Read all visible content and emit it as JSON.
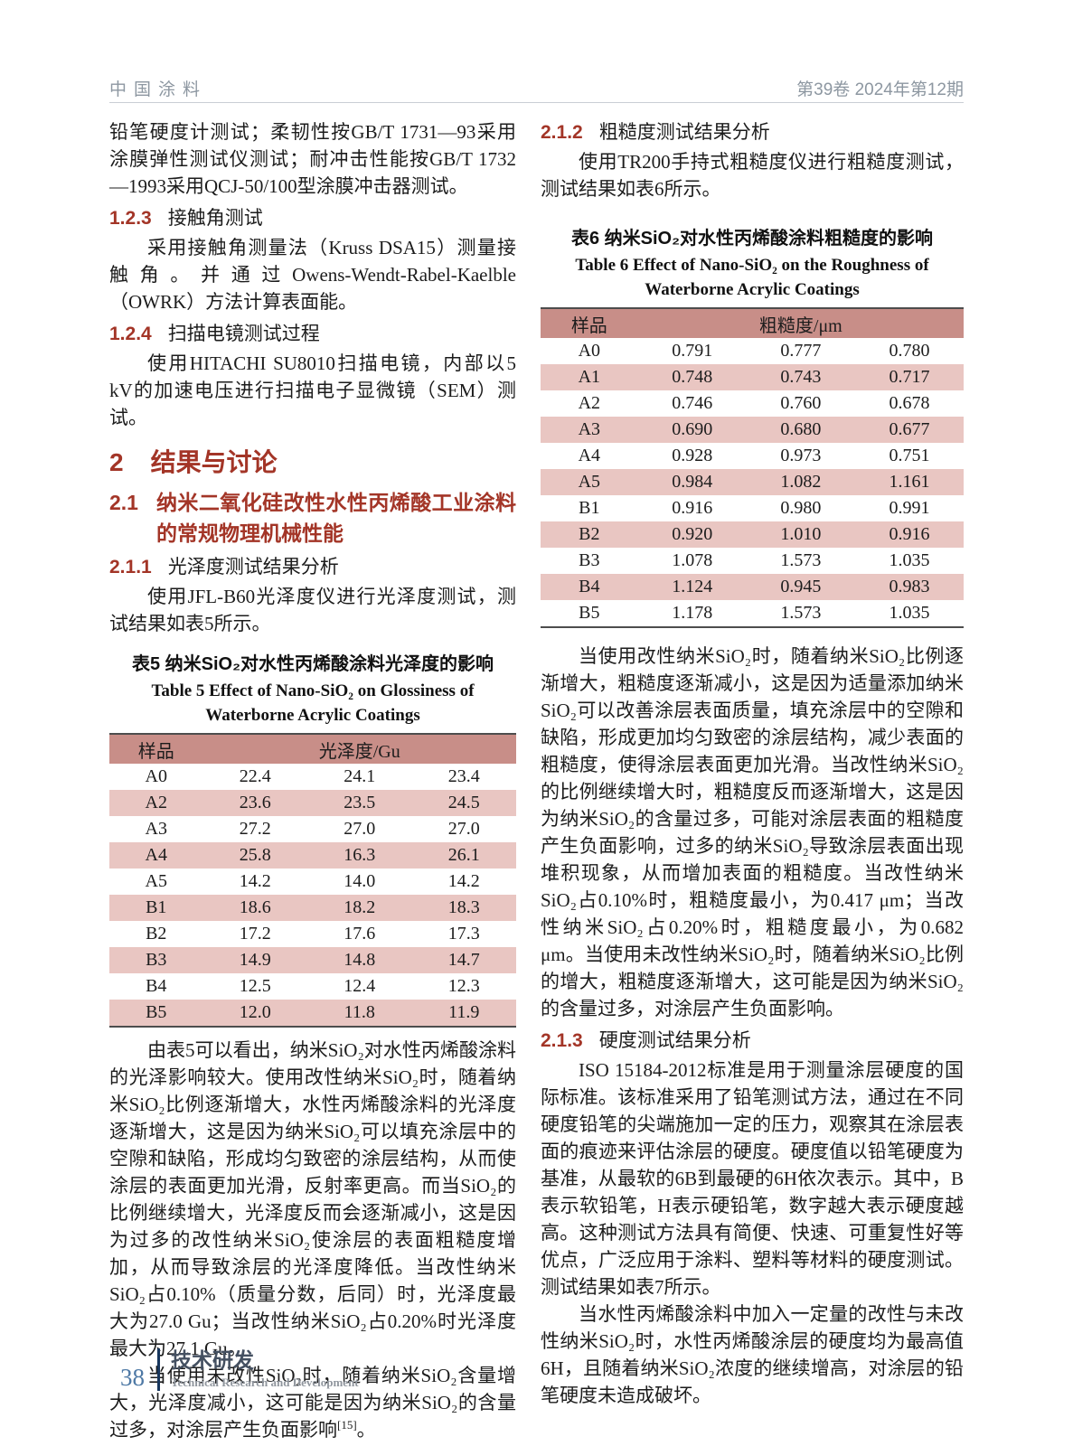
{
  "header": {
    "journal_cn": "中国涂料",
    "issue_info": "第39卷  2024年第12期"
  },
  "left_column": {
    "para_continuation": "铅笔硬度计测试；柔韧性按GB/T 1731—93采用涂膜弹性测试仪测试；耐冲击性能按GB/T 1732—1993采用QCJ-50/100型涂膜冲击器测试。",
    "h123": {
      "num": "1.2.3",
      "title": "接触角测试"
    },
    "para_contact_angle": "采用接触角测量法（Kruss DSA15）测量接触角。并通过Owens-Wendt-Rabel-Kaelble（OWRK）方法计算表面能。",
    "h124": {
      "num": "1.2.4",
      "title": "扫描电镜测试过程"
    },
    "para_sem": "使用HITACHI SU8010扫描电镜，内部以5 kV的加速电压进行扫描电子显微镜（SEM）测试。",
    "h2": {
      "num": "2",
      "title": "结果与讨论"
    },
    "h21": {
      "num": "2.1",
      "title": "纳米二氧化硅改性水性丙烯酸工业涂料的常规物理机械性能"
    },
    "h211": {
      "num": "2.1.1",
      "title": "光泽度测试结果分析"
    },
    "para_gloss_intro": "使用JFL-B60光泽度仪进行光泽度测试，测试结果如表5所示。",
    "para_gloss_discussion": "由表5可以看出，纳米SiO₂对水性丙烯酸涂料的光泽影响较大。使用改性纳米SiO₂时，随着纳米SiO₂比例逐渐增大，水性丙烯酸涂料的光泽度逐渐增大，这是因为纳米SiO₂可以填充涂层中的空隙和缺陷，形成均匀致密的涂层结构，从而使涂层的表面更加光滑，反射率更高。而当SiO₂的比例继续增大，光泽度反而会逐渐减小，这是因为过多的改性纳米SiO₂使涂层的表面粗糙度增加，从而导致涂层的光泽度降低。当改性纳米SiO₂占0.10%（质量分数，后同）时，光泽度最大为27.0 Gu；当改性纳米SiO₂占0.20%时光泽度最大为27.1 Gu。",
    "para_unmodified_text": "当使用未改性SiO₂时，随着纳米SiO₂含量增大，光泽度减小，这可能是因为纳米SiO₂的含量过多，对涂层产生负面影响",
    "para_unmodified_ref": "[15]",
    "para_unmodified_end": "。"
  },
  "right_column": {
    "h212": {
      "num": "2.1.2",
      "title": "粗糙度测试结果分析"
    },
    "para_rough_intro": "使用TR200手持式粗糙度仪进行粗糙度测试，测试结果如表6所示。",
    "para_rough_discussion": "当使用改性纳米SiO₂时，随着纳米SiO₂比例逐渐增大，粗糙度逐渐减小，这是因为适量添加纳米SiO₂可以改善涂层表面质量，填充涂层中的空隙和缺陷，形成更加均匀致密的涂层结构，减少表面的粗糙度，使得涂层表面更加光滑。当改性纳米SiO₂的比例继续增大时，粗糙度反而逐渐增大，这是因为纳米SiO₂的含量过多，可能对涂层表面的粗糙度产生负面影响，过多的纳米SiO₂导致涂层表面出现堆积现象，从而增加表面的粗糙度。当改性纳米SiO₂占0.10%时，粗糙度最小，为0.417 μm；当改性纳米SiO₂占0.20%时，粗糙度最小，为0.682 μm。当使用未改性纳米SiO₂时，随着纳米SiO₂比例的增大，粗糙度逐渐增大，这可能是因为纳米SiO₂的含量过多，对涂层产生负面影响。",
    "h213": {
      "num": "2.1.3",
      "title": "硬度测试结果分析"
    },
    "para_iso": "ISO 15184-2012标准是用于测量涂层硬度的国际标准。该标准采用了铅笔测试方法，通过在不同硬度铅笔的尖端施加一定的压力，观察其在涂层表面的痕迹来评估涂层的硬度。硬度值以铅笔硬度为基准，从最软的6B到最硬的6H依次表示。其中，B表示软铅笔，H表示硬铅笔，数字越大表示硬度越高。这种测试方法具有简便、快速、可重复性好等优点，广泛应用于涂料、塑料等材料的硬度测试。测试结果如表7所示。",
    "para_hardness": "当水性丙烯酸涂料中加入一定量的改性与未改性纳米SiO₂时，水性丙烯酸涂层的硬度均为最高值6H，且随着纳米SiO₂浓度的继续增高，对涂层的铅笔硬度未造成破坏。"
  },
  "table5": {
    "caption_cn": "表5  纳米SiO₂对水性丙烯酸涂料光泽度的影响",
    "caption_en": "Table 5  Effect of Nano-SiO₂ on Glossiness of Waterborne Acrylic Coatings",
    "header_sample": "样品",
    "header_value": "光泽度/Gu",
    "rows": [
      [
        "A0",
        "22.4",
        "24.1",
        "23.4"
      ],
      [
        "A2",
        "23.6",
        "23.5",
        "24.5"
      ],
      [
        "A3",
        "27.2",
        "27.0",
        "27.0"
      ],
      [
        "A4",
        "25.8",
        "16.3",
        "26.1"
      ],
      [
        "A5",
        "14.2",
        "14.0",
        "14.2"
      ],
      [
        "B1",
        "18.6",
        "18.2",
        "18.3"
      ],
      [
        "B2",
        "17.2",
        "17.6",
        "17.3"
      ],
      [
        "B3",
        "14.9",
        "14.8",
        "14.7"
      ],
      [
        "B4",
        "12.5",
        "12.4",
        "12.3"
      ],
      [
        "B5",
        "12.0",
        "11.8",
        "11.9"
      ]
    ]
  },
  "table6": {
    "caption_cn": "表6  纳米SiO₂对水性丙烯酸涂料粗糙度的影响",
    "caption_en": "Table 6  Effect of Nano-SiO₂ on the Roughness of Waterborne Acrylic Coatings",
    "header_sample": "样品",
    "header_value": "粗糙度/μm",
    "rows": [
      [
        "A0",
        "0.791",
        "0.777",
        "0.780"
      ],
      [
        "A1",
        "0.748",
        "0.743",
        "0.717"
      ],
      [
        "A2",
        "0.746",
        "0.760",
        "0.678"
      ],
      [
        "A3",
        "0.690",
        "0.680",
        "0.677"
      ],
      [
        "A4",
        "0.928",
        "0.973",
        "0.751"
      ],
      [
        "A5",
        "0.984",
        "1.082",
        "1.161"
      ],
      [
        "B1",
        "0.916",
        "0.980",
        "0.991"
      ],
      [
        "B2",
        "0.920",
        "1.010",
        "0.916"
      ],
      [
        "B3",
        "1.078",
        "1.573",
        "1.035"
      ],
      [
        "B4",
        "1.124",
        "0.945",
        "0.983"
      ],
      [
        "B5",
        "1.178",
        "1.573",
        "1.035"
      ]
    ]
  },
  "footer": {
    "page_number": "38",
    "section_cn": "技术研发",
    "section_en": "Technical Research and Development"
  },
  "colors": {
    "heading_red": "#a33527",
    "table_header_bg": "#c88e88",
    "table_row_alt_bg": "#e9c6c2",
    "header_text_gray": "#8d97a1",
    "footer_page_blue": "#4e79a5",
    "footer_bar_navy": "#17365d"
  }
}
